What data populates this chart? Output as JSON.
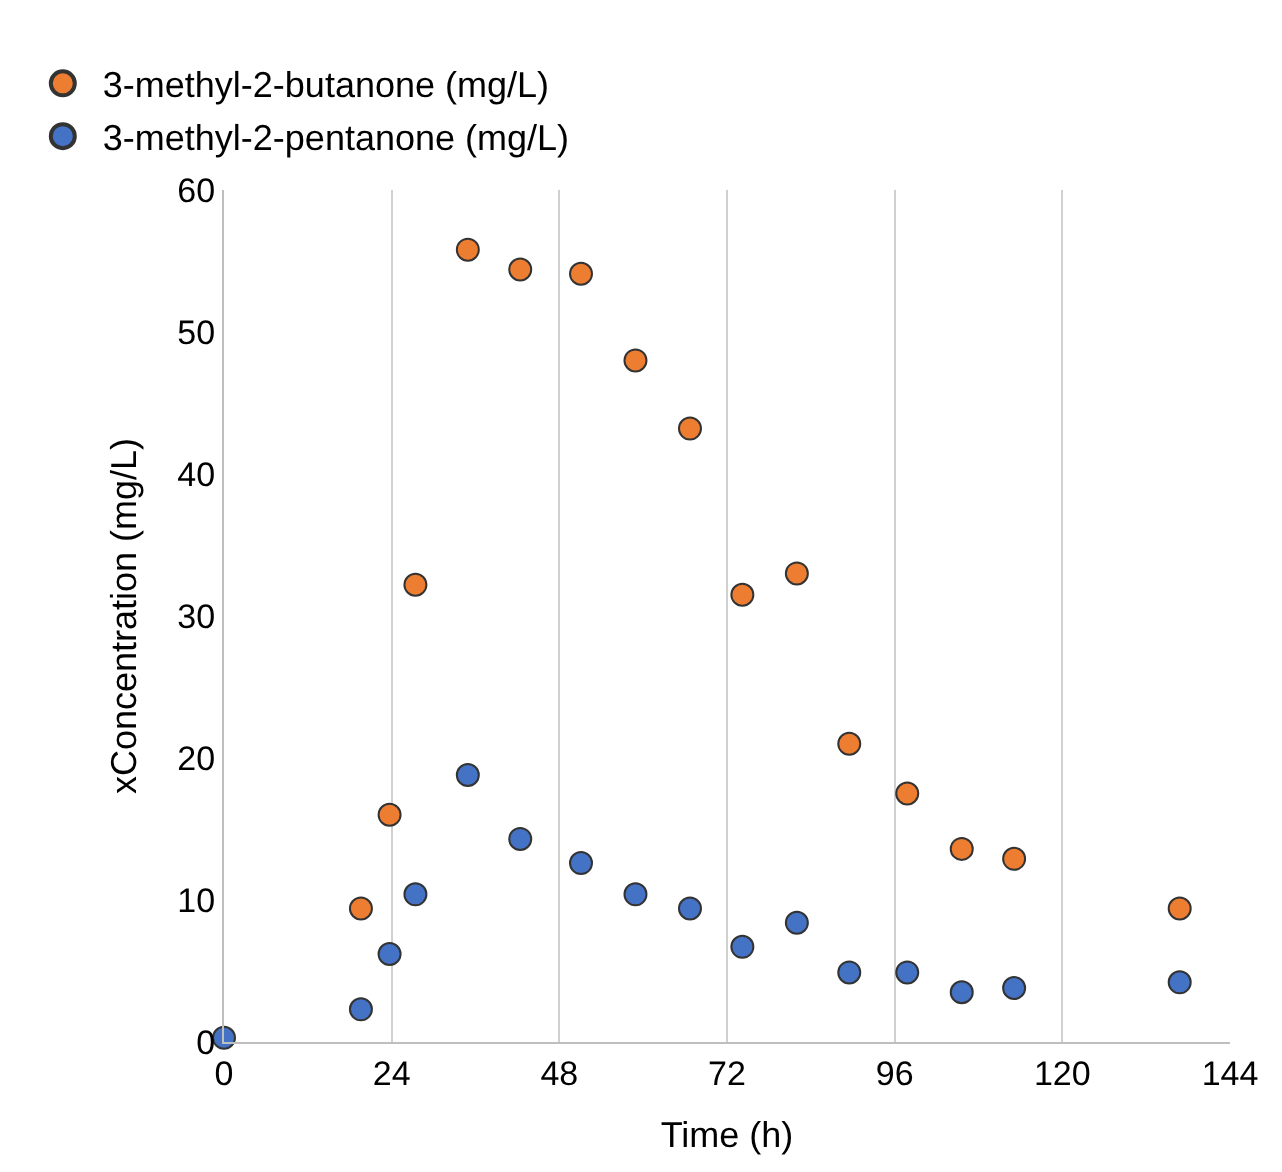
{
  "chart_data": {
    "type": "scatter",
    "xlabel": "Time (h)",
    "ylabel": "xConcentration (mg/L)",
    "series": [
      {
        "name": "3-methyl-2-butanone (mg/L)",
        "color": "#ed7d31",
        "x": [
          19.6,
          23.7,
          27.4,
          34.9,
          42.4,
          51.1,
          58.9,
          66.7,
          74.2,
          82.0,
          89.5,
          97.8,
          105.6,
          113.1,
          136.8
        ],
        "values": [
          9.4,
          16.0,
          32.2,
          55.8,
          54.4,
          54.1,
          48.0,
          43.2,
          31.5,
          33.0,
          21.0,
          17.5,
          13.6,
          12.9,
          9.4
        ]
      },
      {
        "name": "3-methyl-2-pentanone (mg/L)",
        "color": "#4472c4",
        "x": [
          0,
          19.6,
          23.7,
          27.4,
          34.9,
          42.4,
          51.1,
          58.9,
          66.7,
          74.2,
          82.0,
          89.5,
          97.8,
          105.6,
          113.1,
          136.8
        ],
        "values": [
          0.3,
          2.3,
          6.2,
          10.4,
          18.8,
          14.3,
          12.6,
          10.4,
          9.4,
          6.7,
          8.4,
          4.9,
          4.9,
          3.5,
          3.8,
          4.2
        ]
      }
    ],
    "xlim": [
      0,
      144
    ],
    "xticks": [
      0,
      24,
      48,
      72,
      96,
      120,
      144
    ],
    "ylim": [
      0,
      60
    ],
    "yticks": [
      0,
      10,
      20,
      30,
      40,
      50,
      60
    ],
    "grid": "x",
    "legend": "top left",
    "marker": "circle"
  }
}
